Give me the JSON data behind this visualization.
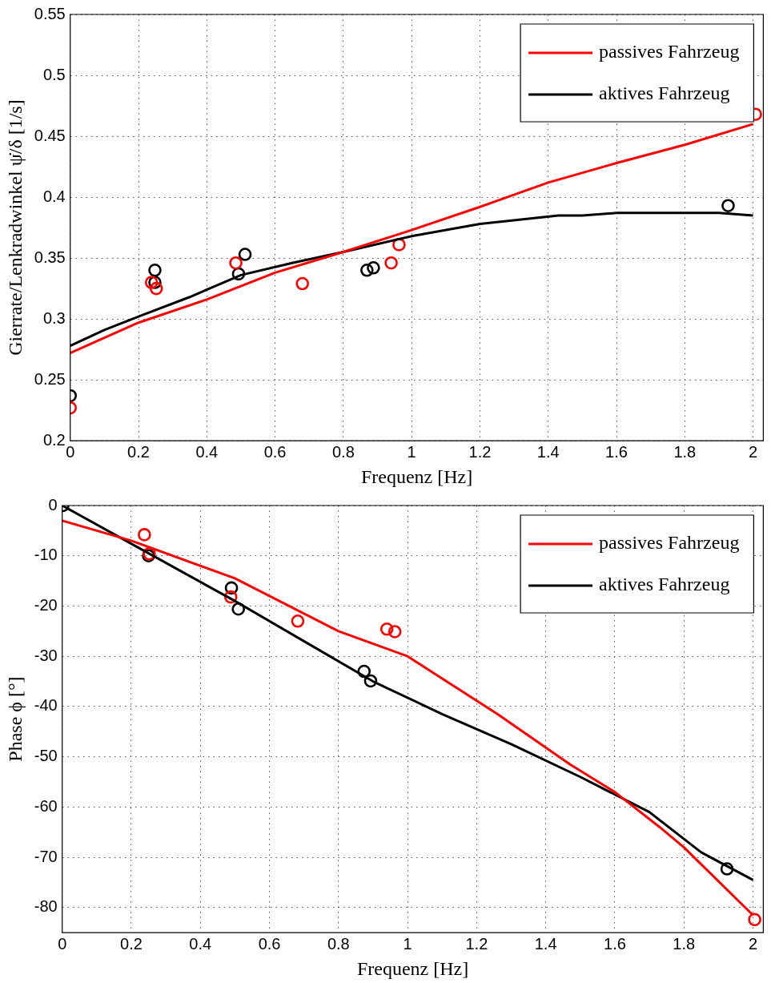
{
  "chart_data": [
    {
      "type": "line",
      "xlabel": "Frequenz [Hz]",
      "ylabel": "Gierrate/Lenkradwinkel ψ̇/δ [1/s]",
      "xlim": [
        0,
        2.03
      ],
      "xticks": [
        0,
        0.2,
        0.4,
        0.6,
        0.8,
        1,
        1.2,
        1.4,
        1.6,
        1.8,
        2
      ],
      "ylim": [
        0.2,
        0.55
      ],
      "yticks": [
        0.2,
        0.25,
        0.3,
        0.35,
        0.4,
        0.45,
        0.5,
        0.55
      ],
      "grid": true,
      "legend": "top right",
      "line_style": "solid",
      "series": [
        {
          "name": "passives Fahrzeug",
          "marker": "none",
          "color": "#ff0000",
          "x": [
            0,
            0.2,
            0.4,
            0.6,
            0.8,
            1,
            1.2,
            1.4,
            1.6,
            1.8,
            2
          ],
          "values": [
            0.272,
            0.297,
            0.316,
            0.338,
            0.355,
            0.373,
            0.392,
            0.412,
            0.428,
            0.443,
            0.46
          ]
        },
        {
          "name": "aktives Fahrzeug",
          "marker": "none",
          "color": "#000000",
          "x": [
            0,
            0.1,
            0.2,
            0.35,
            0.5,
            0.65,
            0.8,
            1,
            1.2,
            1.43,
            1.5,
            1.6,
            1.9,
            2
          ],
          "values": [
            0.278,
            0.291,
            0.302,
            0.318,
            0.336,
            0.346,
            0.355,
            0.368,
            0.378,
            0.385,
            0.385,
            0.387,
            0.387,
            0.385
          ]
        },
        {
          "type": "scatter",
          "marker": "circle",
          "color": "#ff0000",
          "x": [
            0,
            0.238,
            0.252,
            0.485,
            0.68,
            0.94,
            0.963,
            2.007
          ],
          "values": [
            0.227,
            0.33,
            0.325,
            0.346,
            0.329,
            0.346,
            0.361,
            0.468
          ]
        },
        {
          "type": "scatter",
          "marker": "circle",
          "color": "#000000",
          "x": [
            0,
            0.248,
            0.248,
            0.493,
            0.512,
            0.869,
            0.888,
            1.927
          ],
          "values": [
            0.237,
            0.33,
            0.34,
            0.337,
            0.353,
            0.34,
            0.342,
            0.393
          ]
        }
      ]
    },
    {
      "type": "line",
      "xlabel": "Frequenz [Hz]",
      "ylabel": "Phase ϕ [°]",
      "xlim": [
        0,
        2.03
      ],
      "xticks": [
        0,
        0.2,
        0.4,
        0.6,
        0.8,
        1,
        1.2,
        1.4,
        1.6,
        1.8,
        2
      ],
      "ylim": [
        -85,
        0
      ],
      "yticks": [
        -80,
        -70,
        -60,
        -50,
        -40,
        -30,
        -20,
        -10,
        0
      ],
      "grid": true,
      "legend": "top right",
      "line_style": "solid",
      "series": [
        {
          "name": "passives Fahrzeug",
          "marker": "none",
          "color": "#ff0000",
          "x": [
            0,
            0.2,
            0.5,
            0.8,
            1,
            1.26,
            1.47,
            1.6,
            1.73,
            1.8,
            2
          ],
          "values": [
            -3,
            -7,
            -14.5,
            -25,
            -30,
            -41.5,
            -51.5,
            -57,
            -64,
            -68,
            -81.5
          ]
        },
        {
          "name": "aktives Fahrzeug",
          "marker": "none",
          "color": "#000000",
          "x": [
            0,
            0.25,
            0.5,
            0.7,
            0.9,
            1.1,
            1.3,
            1.5,
            1.7,
            1.85,
            2
          ],
          "values": [
            0,
            -9.5,
            -19,
            -27,
            -35,
            -41.5,
            -47.5,
            -54,
            -61,
            -69,
            -74.5
          ]
        },
        {
          "type": "scatter",
          "marker": "circle",
          "color": "#ff0000",
          "x": [
            0.238,
            0.252,
            0.488,
            0.682,
            0.94,
            0.963,
            2.005
          ],
          "values": [
            -5.8,
            -9.6,
            -18.2,
            -23,
            -24.6,
            -25.1,
            -82.4
          ]
        },
        {
          "type": "scatter",
          "marker": "circle",
          "color": "#000000",
          "x": [
            0.002,
            0.25,
            0.49,
            0.51,
            0.874,
            0.893,
            1.925
          ],
          "values": [
            0,
            -10,
            -16.4,
            -20.6,
            -33,
            -34.9,
            -72.3
          ]
        }
      ]
    }
  ]
}
